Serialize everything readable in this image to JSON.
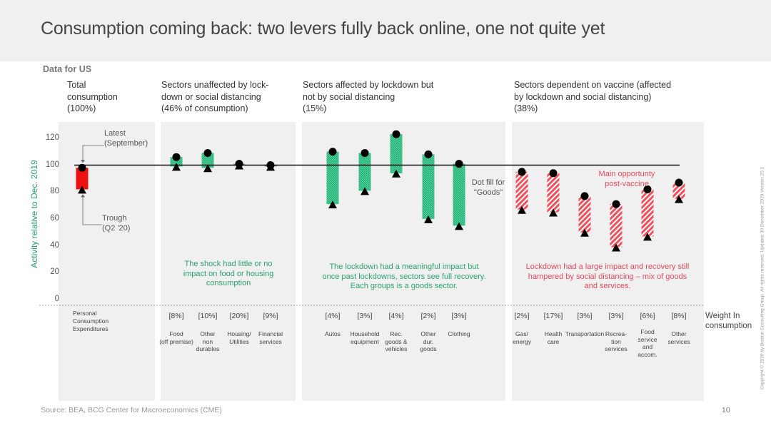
{
  "title": "Consumption coming back: two levers fully back online, one not quite yet",
  "subtitle": "Data for US",
  "sections": [
    {
      "id": "total",
      "header": "Total\nconsumption\n(100%)"
    },
    {
      "id": "unaffected",
      "header": "Sectors unaffected by lock-\ndown or social distancing\n(46% of consumption)",
      "annotation": "The shock had little or no\nimpact on food or  housing\nconsumption"
    },
    {
      "id": "lockdown",
      "header": "Sectors affected by lockdown but\nnot by social distancing\n(15%)",
      "annotation": "The lockdown had a meaningful impact  but\nonce past lockdowns, sectors see full recovery.\nEach groups is a goods sector."
    },
    {
      "id": "vaccine",
      "header": "Sectors dependent on vaccine (affected\nby lockdown and social distancing)\n(38%)",
      "annotation": "Lockdown had a large impact and recovery still\nhampered by social  distancing – mix of goods\nand services."
    }
  ],
  "callouts": {
    "latest": "Latest\n(September)",
    "trough": "Trough\n(Q2 '20)",
    "dot_fill": "Dot fill for\n\"Goods\"",
    "main_opportunity": "Main opportunty\npost-vaccine"
  },
  "pce_label": "Personal\nConsumption\nExpenditures",
  "weight_label": "Weight In\nconsumption",
  "source": "Source: BEA, BCG Center for Macroeconomics (CME)",
  "page_number": "10",
  "copyright": "Copyright © 2020 by Boston Consulting Group. All rights reserved. Updated 30 December 2020 Version 20.1",
  "colors": {
    "total": "#ee1111",
    "goods": "#1db376",
    "vaccine": "#f0505c",
    "reference_line": "#111111",
    "panel": "#f0f0f0"
  },
  "chart_data": {
    "type": "bar",
    "ylabel": "Activity relative to Dec. 2019",
    "ylim": [
      0,
      120
    ],
    "yticks": [
      0,
      20,
      40,
      60,
      80,
      100,
      120
    ],
    "reference_line": 100,
    "categories": [
      {
        "section": "total",
        "label": "",
        "weight": "",
        "trough": 82,
        "latest": 98
      },
      {
        "section": "unaffected",
        "label": "Food\n(off premise)",
        "weight": "[8%]",
        "trough": 99,
        "latest": 106
      },
      {
        "section": "unaffected",
        "label": "Other\nnon\ndurables",
        "weight": "[10%]",
        "trough": 98,
        "latest": 109
      },
      {
        "section": "unaffected",
        "label": "Housing/\nUtilities",
        "weight": "[20%]",
        "trough": 100,
        "latest": 101
      },
      {
        "section": "unaffected",
        "label": "Financial\nservices",
        "weight": "[9%]",
        "trough": 99,
        "latest": 100
      },
      {
        "section": "lockdown",
        "label": "Autos",
        "weight": "[4%]",
        "trough": 71,
        "latest": 110
      },
      {
        "section": "lockdown",
        "label": "Household\nequipment",
        "weight": "[3%]",
        "trough": 81,
        "latest": 109
      },
      {
        "section": "lockdown",
        "label": "Rec.\ngoods &\nvehicles",
        "weight": "[4%]",
        "trough": 94,
        "latest": 123
      },
      {
        "section": "lockdown",
        "label": "Other\ndur.\ngoods",
        "weight": "[2%]",
        "trough": 60,
        "latest": 108
      },
      {
        "section": "lockdown",
        "label": "Clothing",
        "weight": "[3%]",
        "trough": 55,
        "latest": 101
      },
      {
        "section": "vaccine",
        "label": "Gas/\nenergy",
        "weight": "[2%]",
        "trough": 67,
        "latest": 95
      },
      {
        "section": "vaccine",
        "label": "Health\ncare",
        "weight": "[17%]",
        "trough": 65,
        "latest": 94
      },
      {
        "section": "vaccine",
        "label": "Transportation",
        "weight": "[3%]",
        "trough": 50,
        "latest": 77
      },
      {
        "section": "vaccine",
        "label": "Recrea-\ntion\nservices",
        "weight": "[3%]",
        "trough": 39,
        "latest": 71
      },
      {
        "section": "vaccine",
        "label": "Food\nservice\nand\naccom.",
        "weight": "[6%]",
        "trough": 47,
        "latest": 82
      },
      {
        "section": "vaccine",
        "label": "Other\nservices",
        "weight": "[8%]",
        "trough": 75,
        "latest": 87
      }
    ]
  }
}
